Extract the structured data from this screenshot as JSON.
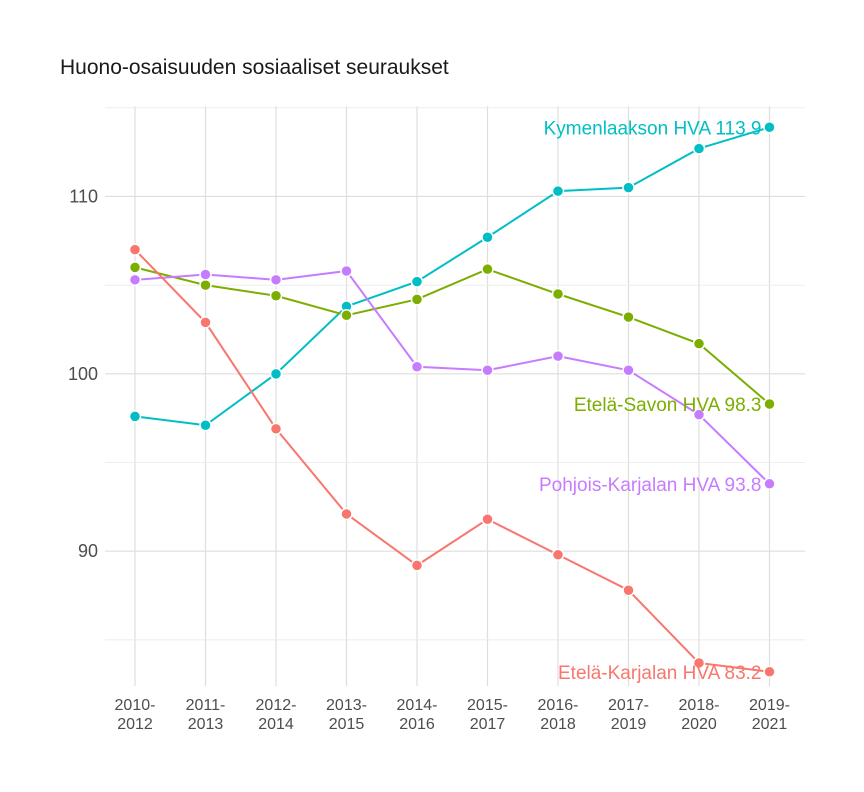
{
  "chart_data": {
    "type": "line",
    "title": "Huono-osaisuuden sosiaaliset seuraukset",
    "xlabel": "",
    "ylabel": "",
    "categories": [
      "2010-\n2012",
      "2011-\n2013",
      "2012-\n2014",
      "2013-\n2015",
      "2014-\n2016",
      "2015-\n2017",
      "2016-\n2018",
      "2017-\n2019",
      "2018-\n2020",
      "2019-\n2021"
    ],
    "yticks": [
      90,
      100,
      110
    ],
    "ylim": [
      82.4,
      115.1
    ],
    "grid": true,
    "legend": "none (series labels at line ends)",
    "series": [
      {
        "name": "Kymenlaakson HVA",
        "label": "Kymenlaakson HVA 113.9",
        "color": "#00bfc4",
        "values": [
          97.6,
          97.1,
          100.0,
          103.8,
          105.2,
          107.7,
          110.3,
          110.5,
          112.7,
          113.9
        ]
      },
      {
        "name": "Etelä-Savon HVA",
        "label": "Etelä-Savon HVA 98.3",
        "color": "#7cae00",
        "values": [
          106.0,
          105.0,
          104.4,
          103.3,
          104.2,
          105.9,
          104.5,
          103.2,
          101.7,
          98.3
        ]
      },
      {
        "name": "Pohjois-Karjalan HVA",
        "label": "Pohjois-Karjalan HVA 93.8",
        "color": "#c77cff",
        "values": [
          105.3,
          105.6,
          105.3,
          105.8,
          100.4,
          100.2,
          101.0,
          100.2,
          97.7,
          93.8
        ]
      },
      {
        "name": "Etelä-Karjalan HVA",
        "label": "Etelä-Karjalan HVA 83.2",
        "color": "#f8766d",
        "values": [
          107.0,
          102.9,
          96.9,
          92.1,
          89.2,
          91.8,
          89.8,
          87.8,
          83.7,
          83.2
        ]
      }
    ]
  }
}
